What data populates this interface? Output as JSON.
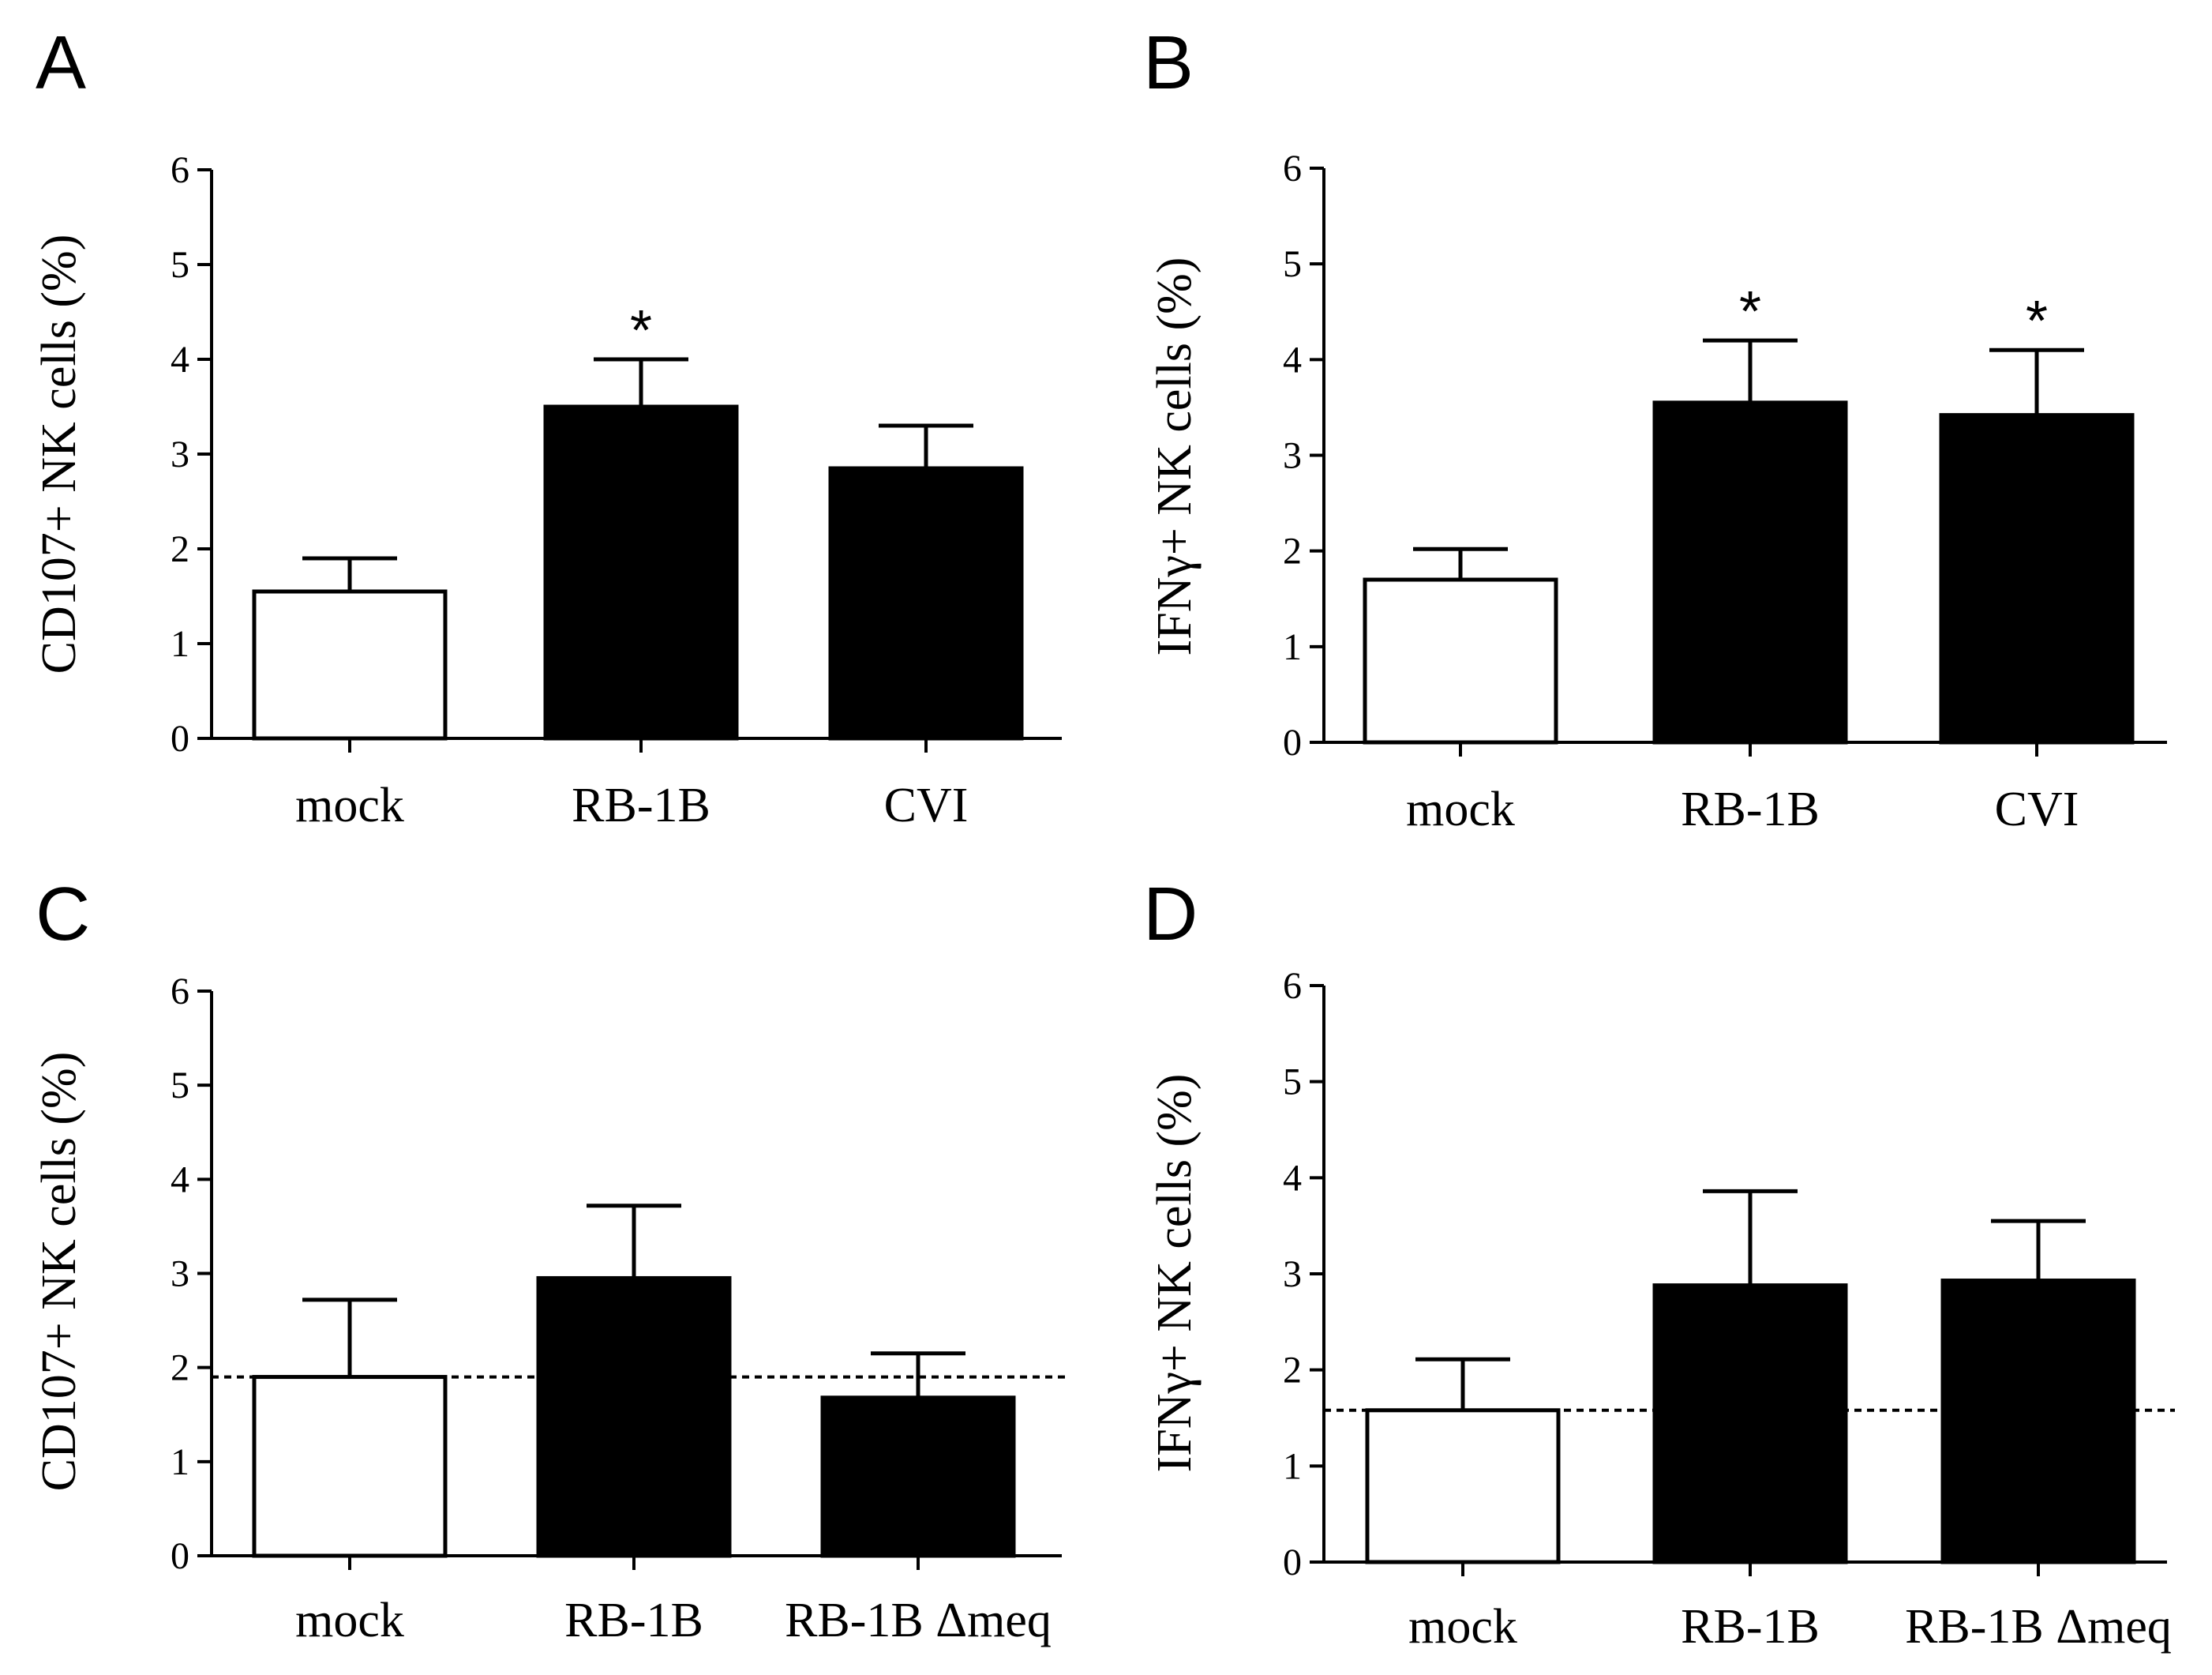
{
  "chart_data": [
    {
      "panel": "A",
      "type": "bar",
      "ylabel": "CD107+ NK cells (%)",
      "ylim": [
        0,
        6
      ],
      "yticks": [
        "0",
        "1",
        "2",
        "3",
        "4",
        "5",
        "6"
      ],
      "categories": [
        "mock",
        "RB-1B",
        "CVI"
      ],
      "values": [
        1.55,
        3.5,
        2.85
      ],
      "errors": [
        0.35,
        0.5,
        0.45
      ],
      "bar_colors": [
        "#ffffff",
        "#000000",
        "#000000"
      ],
      "significance": [
        "",
        "*",
        ""
      ],
      "baseline": null
    },
    {
      "panel": "B",
      "type": "bar",
      "ylabel": "IFNγ+ NK cells (%)",
      "ylim": [
        0,
        6
      ],
      "yticks": [
        "0",
        "1",
        "2",
        "3",
        "4",
        "5",
        "6"
      ],
      "categories": [
        "mock",
        "RB-1B",
        "CVI"
      ],
      "values": [
        1.7,
        3.55,
        3.42
      ],
      "errors": [
        0.32,
        0.65,
        0.68
      ],
      "bar_colors": [
        "#ffffff",
        "#000000",
        "#000000"
      ],
      "significance": [
        "",
        "*",
        "*"
      ],
      "baseline": null
    },
    {
      "panel": "C",
      "type": "bar",
      "ylabel": "CD107+ NK cells (%)",
      "ylim": [
        0,
        6
      ],
      "yticks": [
        "0",
        "1",
        "2",
        "3",
        "4",
        "5",
        "6"
      ],
      "categories": [
        "mock",
        "RB-1B",
        "RB-1B Δmeq"
      ],
      "values": [
        1.9,
        2.95,
        1.68
      ],
      "errors": [
        0.82,
        0.77,
        0.47
      ],
      "bar_colors": [
        "#ffffff",
        "#000000",
        "#000000"
      ],
      "significance": [
        "",
        "",
        ""
      ],
      "baseline": 1.9
    },
    {
      "panel": "D",
      "type": "bar",
      "ylabel": "IFNγ+ NK cells (%)",
      "ylim": [
        0,
        6
      ],
      "yticks": [
        "0",
        "1",
        "2",
        "3",
        "4",
        "5",
        "6"
      ],
      "categories": [
        "mock",
        "RB-1B",
        "RB-1B Δmeq"
      ],
      "values": [
        1.58,
        2.88,
        2.93
      ],
      "errors": [
        0.53,
        0.98,
        0.62
      ],
      "bar_colors": [
        "#ffffff",
        "#000000",
        "#000000"
      ],
      "significance": [
        "",
        "",
        ""
      ],
      "baseline": 1.58
    }
  ]
}
